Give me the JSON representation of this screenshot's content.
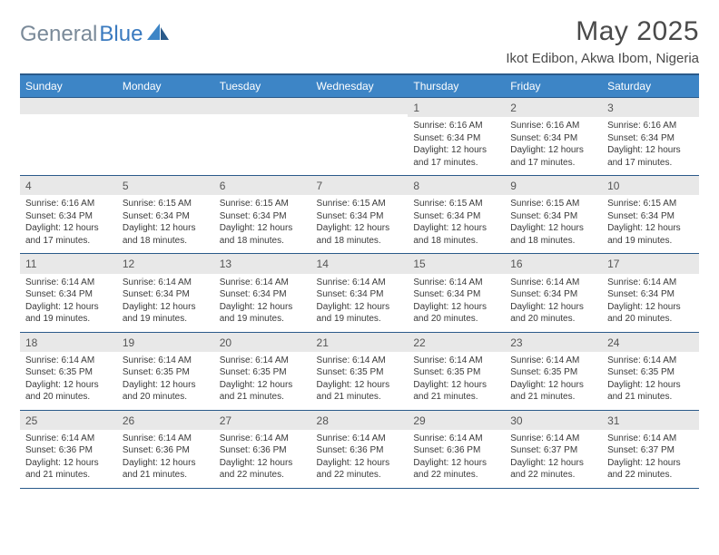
{
  "brand": {
    "part1": "General",
    "part2": "Blue",
    "accent": "#3d85c6",
    "gray": "#7a8a99"
  },
  "title": "May 2025",
  "location": "Ikot Edibon, Akwa Ibom, Nigeria",
  "colors": {
    "header_bg": "#3d85c6",
    "header_text": "#ffffff",
    "rule": "#2a5a8a",
    "band": "#e8e8e8",
    "body_text": "#3a3a3a"
  },
  "weekdays": [
    "Sunday",
    "Monday",
    "Tuesday",
    "Wednesday",
    "Thursday",
    "Friday",
    "Saturday"
  ],
  "weeks": [
    [
      {
        "n": "",
        "sr": "",
        "ss": "",
        "dl": ""
      },
      {
        "n": "",
        "sr": "",
        "ss": "",
        "dl": ""
      },
      {
        "n": "",
        "sr": "",
        "ss": "",
        "dl": ""
      },
      {
        "n": "",
        "sr": "",
        "ss": "",
        "dl": ""
      },
      {
        "n": "1",
        "sr": "Sunrise: 6:16 AM",
        "ss": "Sunset: 6:34 PM",
        "dl": "Daylight: 12 hours and 17 minutes."
      },
      {
        "n": "2",
        "sr": "Sunrise: 6:16 AM",
        "ss": "Sunset: 6:34 PM",
        "dl": "Daylight: 12 hours and 17 minutes."
      },
      {
        "n": "3",
        "sr": "Sunrise: 6:16 AM",
        "ss": "Sunset: 6:34 PM",
        "dl": "Daylight: 12 hours and 17 minutes."
      }
    ],
    [
      {
        "n": "4",
        "sr": "Sunrise: 6:16 AM",
        "ss": "Sunset: 6:34 PM",
        "dl": "Daylight: 12 hours and 17 minutes."
      },
      {
        "n": "5",
        "sr": "Sunrise: 6:15 AM",
        "ss": "Sunset: 6:34 PM",
        "dl": "Daylight: 12 hours and 18 minutes."
      },
      {
        "n": "6",
        "sr": "Sunrise: 6:15 AM",
        "ss": "Sunset: 6:34 PM",
        "dl": "Daylight: 12 hours and 18 minutes."
      },
      {
        "n": "7",
        "sr": "Sunrise: 6:15 AM",
        "ss": "Sunset: 6:34 PM",
        "dl": "Daylight: 12 hours and 18 minutes."
      },
      {
        "n": "8",
        "sr": "Sunrise: 6:15 AM",
        "ss": "Sunset: 6:34 PM",
        "dl": "Daylight: 12 hours and 18 minutes."
      },
      {
        "n": "9",
        "sr": "Sunrise: 6:15 AM",
        "ss": "Sunset: 6:34 PM",
        "dl": "Daylight: 12 hours and 18 minutes."
      },
      {
        "n": "10",
        "sr": "Sunrise: 6:15 AM",
        "ss": "Sunset: 6:34 PM",
        "dl": "Daylight: 12 hours and 19 minutes."
      }
    ],
    [
      {
        "n": "11",
        "sr": "Sunrise: 6:14 AM",
        "ss": "Sunset: 6:34 PM",
        "dl": "Daylight: 12 hours and 19 minutes."
      },
      {
        "n": "12",
        "sr": "Sunrise: 6:14 AM",
        "ss": "Sunset: 6:34 PM",
        "dl": "Daylight: 12 hours and 19 minutes."
      },
      {
        "n": "13",
        "sr": "Sunrise: 6:14 AM",
        "ss": "Sunset: 6:34 PM",
        "dl": "Daylight: 12 hours and 19 minutes."
      },
      {
        "n": "14",
        "sr": "Sunrise: 6:14 AM",
        "ss": "Sunset: 6:34 PM",
        "dl": "Daylight: 12 hours and 19 minutes."
      },
      {
        "n": "15",
        "sr": "Sunrise: 6:14 AM",
        "ss": "Sunset: 6:34 PM",
        "dl": "Daylight: 12 hours and 20 minutes."
      },
      {
        "n": "16",
        "sr": "Sunrise: 6:14 AM",
        "ss": "Sunset: 6:34 PM",
        "dl": "Daylight: 12 hours and 20 minutes."
      },
      {
        "n": "17",
        "sr": "Sunrise: 6:14 AM",
        "ss": "Sunset: 6:34 PM",
        "dl": "Daylight: 12 hours and 20 minutes."
      }
    ],
    [
      {
        "n": "18",
        "sr": "Sunrise: 6:14 AM",
        "ss": "Sunset: 6:35 PM",
        "dl": "Daylight: 12 hours and 20 minutes."
      },
      {
        "n": "19",
        "sr": "Sunrise: 6:14 AM",
        "ss": "Sunset: 6:35 PM",
        "dl": "Daylight: 12 hours and 20 minutes."
      },
      {
        "n": "20",
        "sr": "Sunrise: 6:14 AM",
        "ss": "Sunset: 6:35 PM",
        "dl": "Daylight: 12 hours and 21 minutes."
      },
      {
        "n": "21",
        "sr": "Sunrise: 6:14 AM",
        "ss": "Sunset: 6:35 PM",
        "dl": "Daylight: 12 hours and 21 minutes."
      },
      {
        "n": "22",
        "sr": "Sunrise: 6:14 AM",
        "ss": "Sunset: 6:35 PM",
        "dl": "Daylight: 12 hours and 21 minutes."
      },
      {
        "n": "23",
        "sr": "Sunrise: 6:14 AM",
        "ss": "Sunset: 6:35 PM",
        "dl": "Daylight: 12 hours and 21 minutes."
      },
      {
        "n": "24",
        "sr": "Sunrise: 6:14 AM",
        "ss": "Sunset: 6:35 PM",
        "dl": "Daylight: 12 hours and 21 minutes."
      }
    ],
    [
      {
        "n": "25",
        "sr": "Sunrise: 6:14 AM",
        "ss": "Sunset: 6:36 PM",
        "dl": "Daylight: 12 hours and 21 minutes."
      },
      {
        "n": "26",
        "sr": "Sunrise: 6:14 AM",
        "ss": "Sunset: 6:36 PM",
        "dl": "Daylight: 12 hours and 21 minutes."
      },
      {
        "n": "27",
        "sr": "Sunrise: 6:14 AM",
        "ss": "Sunset: 6:36 PM",
        "dl": "Daylight: 12 hours and 22 minutes."
      },
      {
        "n": "28",
        "sr": "Sunrise: 6:14 AM",
        "ss": "Sunset: 6:36 PM",
        "dl": "Daylight: 12 hours and 22 minutes."
      },
      {
        "n": "29",
        "sr": "Sunrise: 6:14 AM",
        "ss": "Sunset: 6:36 PM",
        "dl": "Daylight: 12 hours and 22 minutes."
      },
      {
        "n": "30",
        "sr": "Sunrise: 6:14 AM",
        "ss": "Sunset: 6:37 PM",
        "dl": "Daylight: 12 hours and 22 minutes."
      },
      {
        "n": "31",
        "sr": "Sunrise: 6:14 AM",
        "ss": "Sunset: 6:37 PM",
        "dl": "Daylight: 12 hours and 22 minutes."
      }
    ]
  ]
}
